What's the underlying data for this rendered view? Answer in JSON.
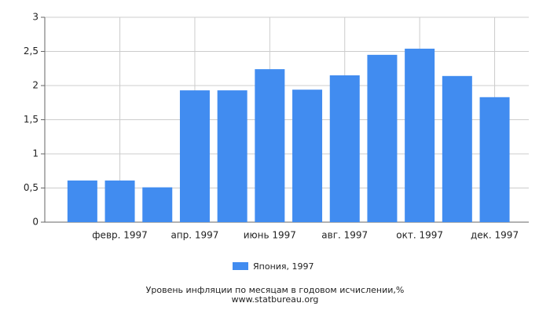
{
  "chart_data": {
    "type": "bar",
    "title": "Уровень инфляции по месяцам в годовом исчислении,%",
    "source": "www.statbureau.org",
    "categories": [
      null,
      "февр. 1997",
      null,
      "апр. 1997",
      null,
      "июнь 1997",
      null,
      "авг. 1997",
      null,
      "окт. 1997",
      null,
      "дек. 1997"
    ],
    "series": [
      {
        "name": "Япония, 1997",
        "color": "#418cf0",
        "values": [
          0.61,
          0.61,
          0.51,
          1.93,
          1.93,
          2.24,
          1.94,
          2.15,
          2.45,
          2.54,
          2.14,
          1.83
        ]
      }
    ],
    "ylim": [
      0,
      3
    ],
    "yticks": [
      0,
      {
        "value": 0.5,
        "label": "0,5"
      },
      1,
      {
        "value": 1.5,
        "label": "1,5"
      },
      2,
      {
        "value": 2.5,
        "label": "2,5"
      },
      3
    ],
    "grid": true
  }
}
